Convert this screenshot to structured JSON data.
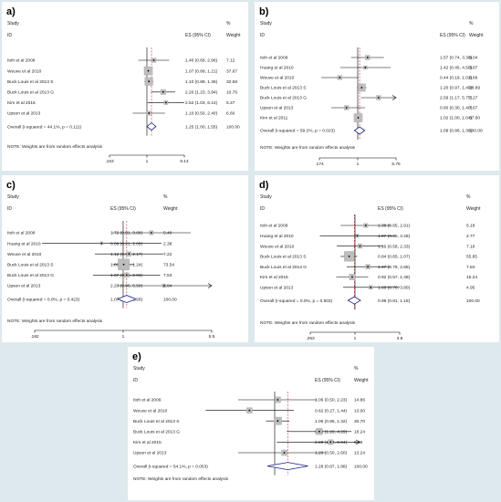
{
  "columns": {
    "study": "Study",
    "id": "ID",
    "es": "ES (95% CI)",
    "pct": "%",
    "weight": "Weight"
  },
  "note": "NOTE: Weights are from random effects analysis",
  "chart_data": [
    {
      "type": "forest",
      "panel_label": "a)",
      "xlim": [
        0.163,
        6.14
      ],
      "tick_labels": [
        ".163",
        "1",
        "6.14"
      ],
      "tick_values": [
        0.163,
        1,
        6.14
      ],
      "overall_es": 1.25,
      "studies": [
        {
          "name": "Itoh et al 2009",
          "es": 1.4,
          "lo": 0.66,
          "hi": 2.96,
          "label": "1.40 (0.66, 2.96)",
          "weight": "7.12",
          "w": 7.12
        },
        {
          "name": "Weuve et al 2010",
          "es": 1.07,
          "lo": 0.88,
          "hi": 1.21,
          "label": "1.07 (0.88, 1.21)",
          "weight": "37.67",
          "w": 37.67
        },
        {
          "name": "Buck Louis et al 2013 S",
          "es": 1.1,
          "lo": 0.89,
          "hi": 1.36,
          "label": "1.10 (0.89, 1.36)",
          "weight": "32.58",
          "w": 32.58
        },
        {
          "name": "Buck Louis et al 2013 G",
          "es": 2.2,
          "lo": 1.23,
          "hi": 3.94,
          "label": "2.20 (1.23, 3.94)",
          "weight": "10.76",
          "w": 10.76
        },
        {
          "name": "Kim et al 2015",
          "es": 2.52,
          "lo": 1.03,
          "hi": 6.14,
          "label": "2.52 (1.03, 6.14)",
          "weight": "5.27",
          "w": 5.27
        },
        {
          "name": "Upson et al 2013",
          "es": 1.1,
          "lo": 0.5,
          "hi": 2.4,
          "label": "1.10 (0.50, 2.40)",
          "weight": "6.60",
          "w": 6.6
        }
      ],
      "overall": {
        "name": "Overall  (I-squared = 44.1%, p = 0.111)",
        "es": 1.25,
        "lo": 1.0,
        "hi": 1.55,
        "label": "1.25 (1.00, 1.55)",
        "weight": "100.00"
      }
    },
    {
      "type": "forest",
      "panel_label": "b)",
      "xlim": [
        0.174,
        5.75
      ],
      "tick_labels": [
        ".174",
        "1",
        "5.75"
      ],
      "tick_values": [
        0.174,
        1,
        5.75
      ],
      "overall_es": 1.09,
      "studies": [
        {
          "name": "Itoh et al 2009",
          "es": 1.57,
          "lo": 0.74,
          "hi": 3.3,
          "label": "1.57 (0.74, 3.30)",
          "weight": "8.04",
          "w": 8.04
        },
        {
          "name": "Huang et al 2010",
          "es": 1.42,
          "lo": 0.45,
          "hi": 4.5,
          "label": "1.42 (0.45, 4.50)",
          "weight": "3.87",
          "w": 3.87
        },
        {
          "name": "Weuve et al 2010",
          "es": 0.44,
          "lo": 0.19,
          "hi": 1.02,
          "label": "0.44 (0.19, 1.02)",
          "weight": "6.66",
          "w": 6.66
        },
        {
          "name": "Buck Louis et al 2013 S",
          "es": 1.2,
          "lo": 0.97,
          "hi": 1.49,
          "label": "1.20 (0.97, 1.49)",
          "weight": "28.89",
          "w": 28.89
        },
        {
          "name": "Buck Louis et al 2013 G",
          "es": 2.59,
          "lo": 1.17,
          "hi": 5.75,
          "label": "2.59 (1.17, 5.75)",
          "weight": "7.27",
          "w": 7.27,
          "arrow": true
        },
        {
          "name": "Upson et al 2013",
          "es": 0.6,
          "lo": 0.3,
          "hi": 1.4,
          "label": "0.60 (0.30, 1.40)",
          "weight": "7.67",
          "w": 7.67
        },
        {
          "name": "Kim et al 2011",
          "es": 1.02,
          "lo": 1.0,
          "hi": 1.04,
          "label": "1.02 (1.00, 1.04)",
          "weight": "37.60",
          "w": 37.6
        }
      ],
      "overall": {
        "name": "Overall  (I-squared = 59.2%, p = 0.023)",
        "es": 1.09,
        "lo": 0.86,
        "hi": 1.38,
        "label": "1.09 (0.86, 1.38)",
        "weight": "100.00"
      }
    },
    {
      "type": "forest",
      "panel_label": "c)",
      "xlim": [
        0.182,
        5.5
      ],
      "tick_labels": [
        ".182",
        "1",
        "5.5"
      ],
      "tick_values": [
        0.182,
        1,
        5.5
      ],
      "overall_es": 1.07,
      "studies": [
        {
          "name": "Itoh et al 2009",
          "es": 1.72,
          "lo": 0.81,
          "hi": 3.68,
          "label": "1.72 (0.81, 3.68)",
          "weight": "5.49",
          "w": 5.49
        },
        {
          "name": "Huang et al 2010",
          "es": 0.66,
          "lo": 0.21,
          "hi": 2.09,
          "label": "0.66 (0.21, 2.09)",
          "weight": "2.38",
          "w": 2.38
        },
        {
          "name": "Weuve et al 2010",
          "es": 1.12,
          "lo": 0.58,
          "hi": 2.17,
          "label": "1.12 (0.58, 2.17)",
          "weight": "7.22",
          "w": 7.22
        },
        {
          "name": "Buck Louis et al 2013 S",
          "es": 1.01,
          "lo": 0.82,
          "hi": 1.24,
          "label": "1.01 (0.82, 1.24)",
          "weight": "73.54",
          "w": 73.54
        },
        {
          "name": "Buck Louis et al 2013 G",
          "es": 1.07,
          "lo": 0.56,
          "hi": 2.04,
          "label": "1.07 (0.56, 2.04)",
          "weight": "7.53",
          "w": 7.53
        },
        {
          "name": "Upson et al 2013",
          "es": 2.2,
          "lo": 0.9,
          "hi": 5.5,
          "label": "2.20 (0.90, 5.50)",
          "weight": "3.84",
          "w": 3.84,
          "arrow": true
        }
      ],
      "overall": {
        "name": "Overall  (I-squared = 0.0%, p = 0.423)",
        "es": 1.07,
        "lo": 0.9,
        "hi": 1.28,
        "label": "1.07 (0.90, 1.28)",
        "weight": "100.00"
      }
    },
    {
      "type": "forest",
      "panel_label": "d)",
      "xlim": [
        0.263,
        3.8
      ],
      "tick_labels": [
        ".263",
        "1",
        "3.8"
      ],
      "tick_values": [
        0.263,
        1,
        3.8
      ],
      "overall_es": 0.98,
      "studies": [
        {
          "name": "Itoh et al 2009",
          "es": 1.38,
          "lo": 0.65,
          "hi": 2.91,
          "label": "1.38 (0.65, 2.91)",
          "weight": "6.18",
          "w": 6.18
        },
        {
          "name": "Huang et al 2010",
          "es": 1.07,
          "lo": 0.35,
          "hi": 3.28,
          "label": "1.07 (0.35, 3.28)",
          "weight": "2.77",
          "w": 2.77
        },
        {
          "name": "Weuve et al 2010",
          "es": 1.16,
          "lo": 0.58,
          "hi": 2.33,
          "label": "1.16 (0.58, 2.33)",
          "weight": "7.18",
          "w": 7.18
        },
        {
          "name": "Buck Louis et al 2013 S",
          "es": 0.84,
          "lo": 0.65,
          "hi": 1.07,
          "label": "0.84 (0.65, 1.07)",
          "weight": "55.85",
          "w": 55.85
        },
        {
          "name": "Buck Louis et al 2013 G",
          "es": 1.47,
          "lo": 0.78,
          "hi": 2.85,
          "label": "1.47 (0.78, 2.85)",
          "weight": "7.84",
          "w": 7.84
        },
        {
          "name": "Kim et al 2015",
          "es": 0.92,
          "lo": 0.57,
          "hi": 1.48,
          "label": "0.92 (0.57, 1.48)",
          "weight": "15.24",
          "w": 15.24
        },
        {
          "name": "Upson et al 2013",
          "es": 1.6,
          "lo": 0.7,
          "hi": 3.8,
          "label": "1.60 (0.70, 3.80)",
          "weight": "4.95",
          "w": 4.95
        }
      ],
      "overall": {
        "name": "Overall  (I-squared = 0.0%, p = 0.503)",
        "es": 0.98,
        "lo": 0.81,
        "hi": 1.18,
        "label": "0.98 (0.81, 1.18)",
        "weight": "100.00"
      }
    },
    {
      "type": "forest",
      "panel_label": "e)",
      "xlim": [
        0.2,
        5
      ],
      "tick_labels": [],
      "tick_values": [],
      "overall_es": 1.28,
      "studies": [
        {
          "name": "Itoh et al 2009",
          "es": 1.06,
          "lo": 0.5,
          "hi": 2.23,
          "label": "1.06 (0.50, 2.23)",
          "weight": "14.86",
          "w": 14.86
        },
        {
          "name": "Weuve et al 2010",
          "es": 0.62,
          "lo": 0.27,
          "hi": 1.44,
          "label": "0.62 (0.27, 1.44)",
          "weight": "13.00",
          "w": 13.0
        },
        {
          "name": "Buck Louis et al 2013 S",
          "es": 1.06,
          "lo": 0.85,
          "hi": 1.32,
          "label": "1.06 (0.85, 1.32)",
          "weight": "30.70",
          "w": 30.7
        },
        {
          "name": "Buck Louis et al 2013 G",
          "es": 2.33,
          "lo": 1.26,
          "hi": 4.29,
          "label": "2.33 (1.26, 4.29)",
          "weight": "18.24",
          "w": 18.24
        },
        {
          "name": "Kim et al 2015",
          "es": 2.89,
          "lo": 1.04,
          "hi": 8.04,
          "label": "2.89 (1.04, 8.04)",
          "weight": "9.96",
          "w": 9.96,
          "arrow": true
        },
        {
          "name": "Upson et al 2013",
          "es": 1.2,
          "lo": 0.5,
          "hi": 2.6,
          "label": "1.20 (0.50, 2.60)",
          "weight": "13.24",
          "w": 13.24
        }
      ],
      "overall": {
        "name": "Overall  (I-squared = 54.1%, p = 0.053)",
        "es": 1.28,
        "lo": 0.87,
        "hi": 1.88,
        "label": "1.28 (0.87, 1.88)",
        "weight": "100.00"
      }
    }
  ]
}
